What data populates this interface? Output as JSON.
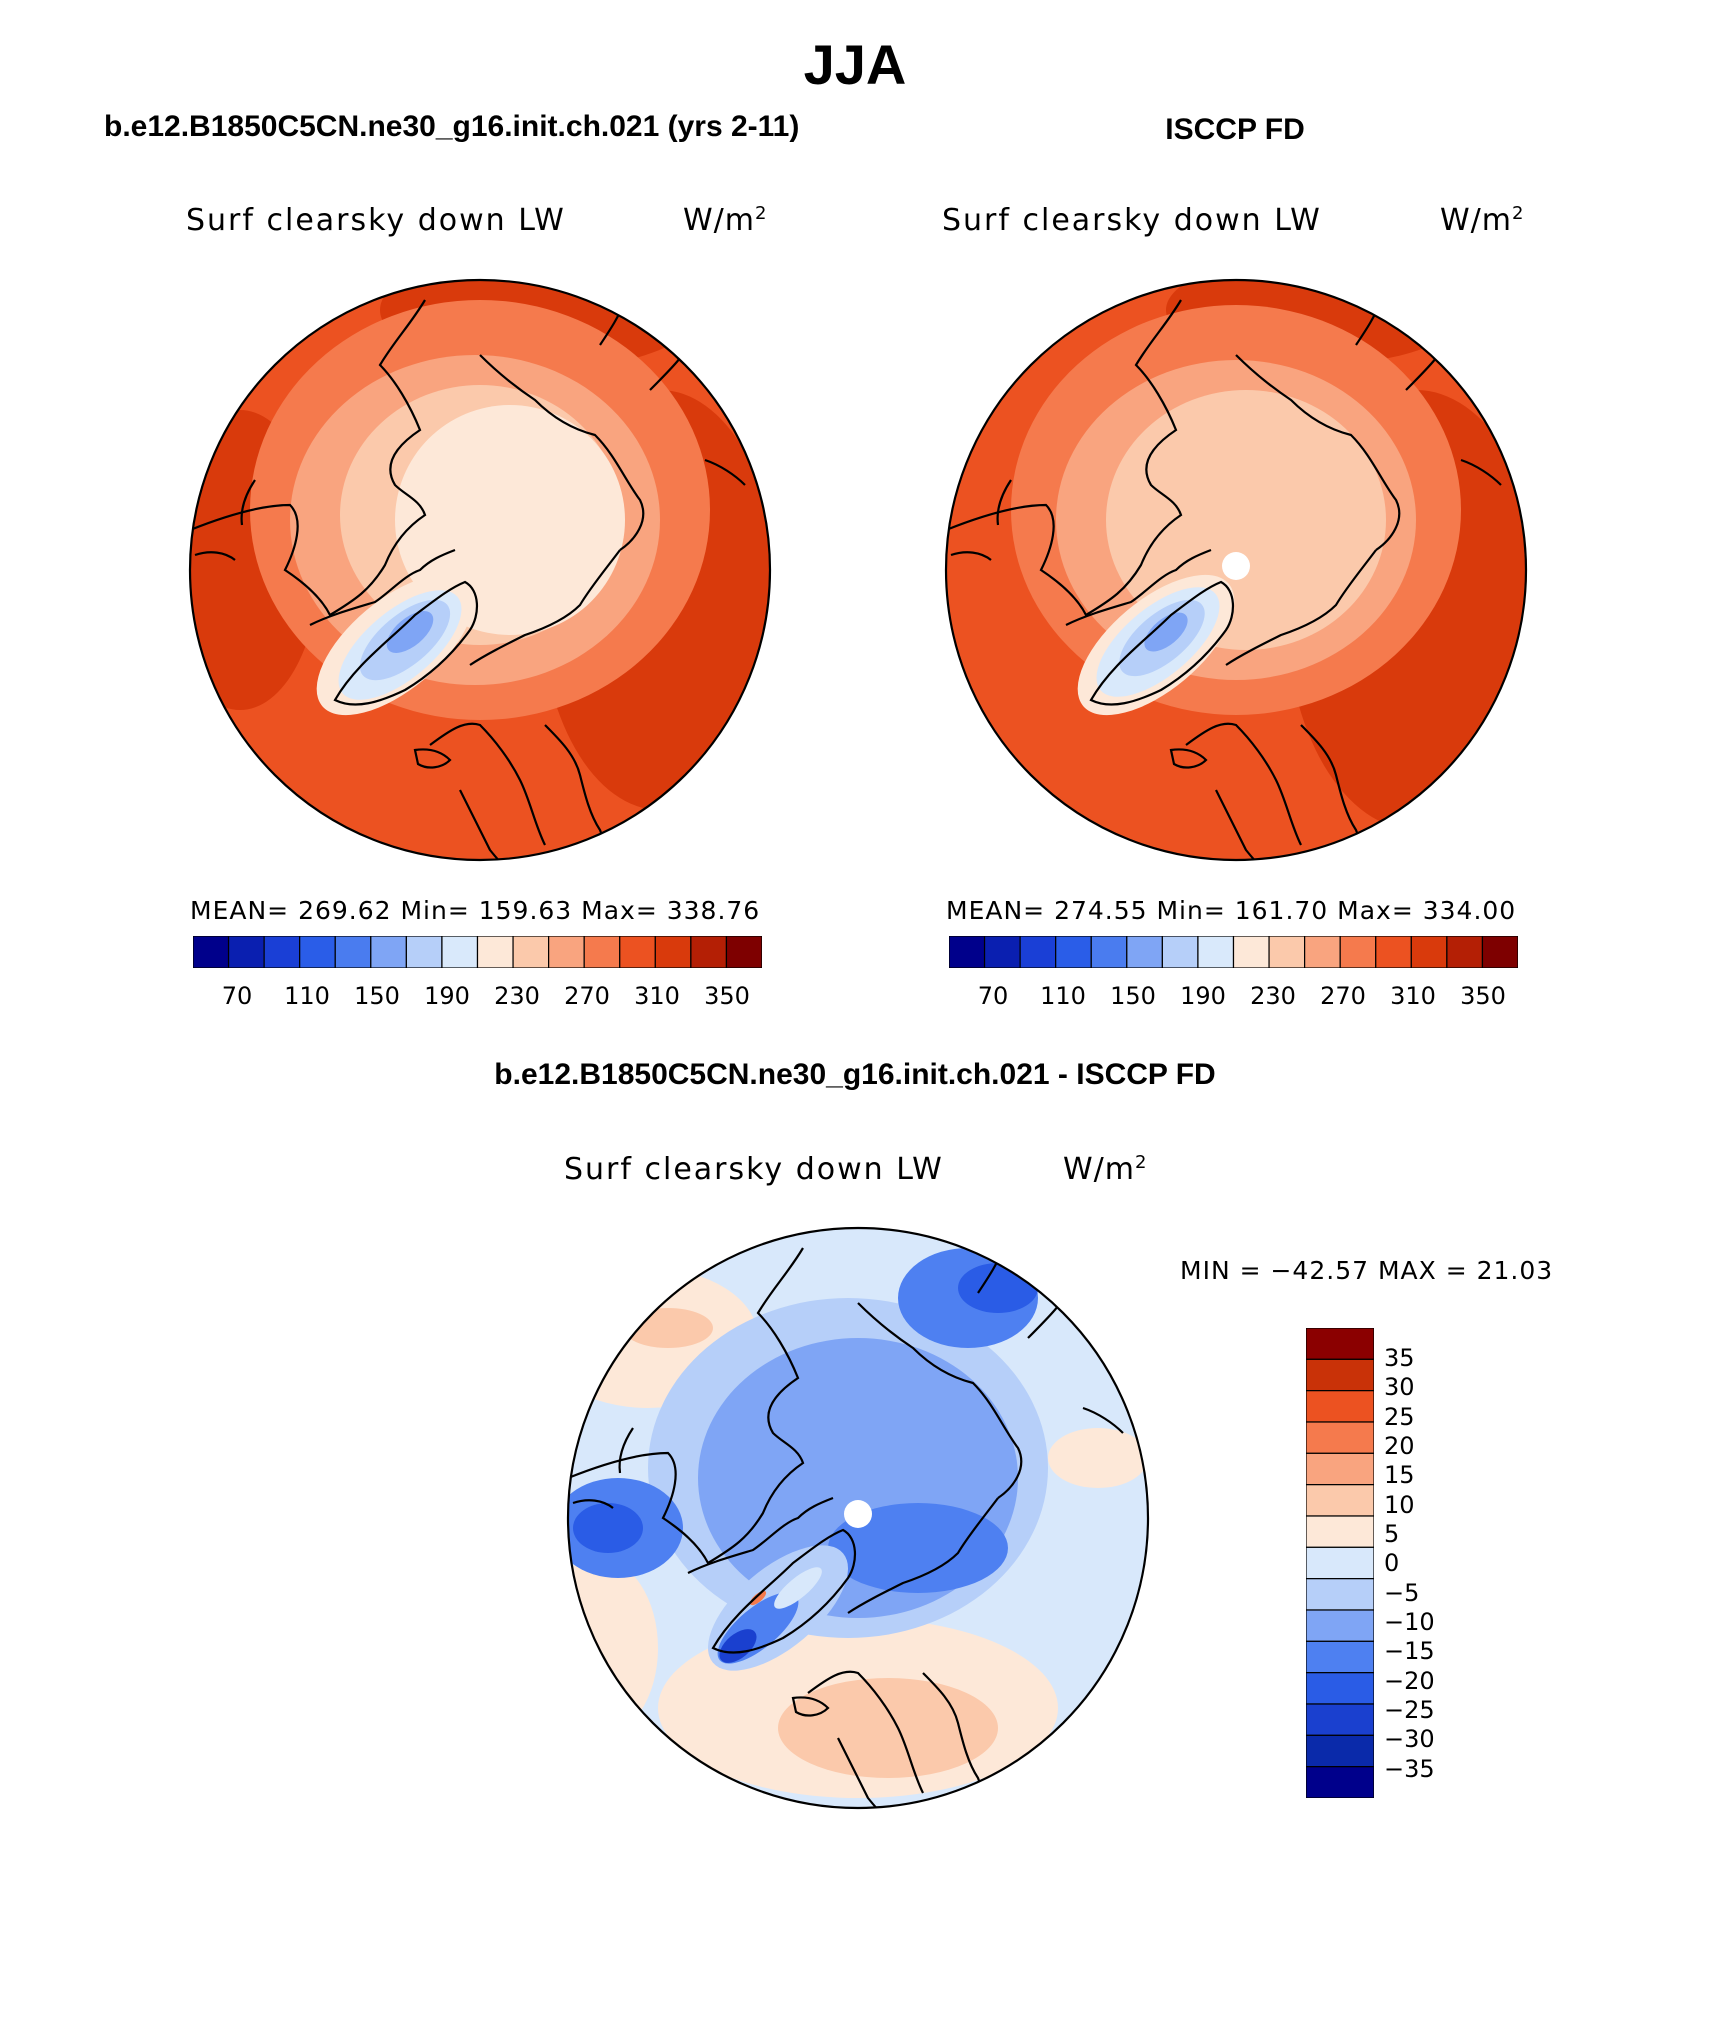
{
  "figure": {
    "title": "JJA",
    "colors": {
      "seq_scale": [
        "#00008b",
        "#0a1fb0",
        "#1a3fd6",
        "#2a5de8",
        "#4a7cef",
        "#7fa5f5",
        "#b6cff9",
        "#d9e9fb",
        "#fde8d8",
        "#fbc9ab",
        "#f9a47f",
        "#f57a4d",
        "#ec5221",
        "#d93a0c",
        "#b41f05",
        "#7e0000"
      ],
      "diff_scale": [
        "#00008b",
        "#0a2aaa",
        "#1a40cf",
        "#2a5ce6",
        "#4e80f1",
        "#7fa5f5",
        "#b6cff9",
        "#d8e8fb",
        "#fde8d8",
        "#fbc9ab",
        "#f9a47f",
        "#f57a4d",
        "#ec5221",
        "#c93208",
        "#8b0000"
      ]
    }
  },
  "panels": [
    {
      "id": "model",
      "title": "b.e12.B1850C5CN.ne30_g16.init.ch.021 (yrs 2-11)",
      "var_name": "Surf clearsky down LW",
      "units": "W/m",
      "units_sup": "2",
      "stats": "MEAN= 269.62   Min= 159.63   Max= 338.76",
      "colorbar_ticks": [
        "70",
        "110",
        "150",
        "190",
        "230",
        "270",
        "310",
        "350"
      ]
    },
    {
      "id": "obs",
      "title": "ISCCP FD",
      "var_name": "Surf clearsky down LW",
      "units": "W/m",
      "units_sup": "2",
      "stats": "MEAN= 274.55   Min= 161.70   Max= 334.00",
      "colorbar_ticks": [
        "70",
        "110",
        "150",
        "190",
        "230",
        "270",
        "310",
        "350"
      ]
    },
    {
      "id": "diff",
      "title": "b.e12.B1850C5CN.ne30_g16.init.ch.021 - ISCCP FD",
      "var_name": "Surf clearsky down LW",
      "units": "W/m",
      "units_sup": "2",
      "stats": "MIN = −42.57 MAX =   21.03",
      "colorbar_ticks": [
        "35",
        "30",
        "25",
        "20",
        "15",
        "10",
        "5",
        "0",
        "−5",
        "−10",
        "−15",
        "−20",
        "−25",
        "−30",
        "−35"
      ]
    }
  ],
  "chart_data": [
    {
      "type": "heatmap",
      "projection": "north polar stereographic",
      "season": "JJA",
      "title": "b.e12.B1850C5CN.ne30_g16.init.ch.021 (yrs 2-11)",
      "variable": "Surf clearsky down LW",
      "units": "W/m2",
      "mean": 269.62,
      "min": 159.63,
      "max": 338.76,
      "contour_levels": [
        70,
        90,
        110,
        130,
        150,
        170,
        190,
        210,
        230,
        250,
        270,
        290,
        310,
        330,
        350
      ],
      "colorbar_labels": [
        70,
        110,
        150,
        190,
        230,
        270,
        310,
        350
      ]
    },
    {
      "type": "heatmap",
      "projection": "north polar stereographic",
      "season": "JJA",
      "title": "ISCCP FD",
      "variable": "Surf clearsky down LW",
      "units": "W/m2",
      "mean": 274.55,
      "min": 161.7,
      "max": 334.0,
      "contour_levels": [
        70,
        90,
        110,
        130,
        150,
        170,
        190,
        210,
        230,
        250,
        270,
        290,
        310,
        330,
        350
      ],
      "colorbar_labels": [
        70,
        110,
        150,
        190,
        230,
        270,
        310,
        350
      ]
    },
    {
      "type": "heatmap",
      "projection": "north polar stereographic",
      "season": "JJA",
      "title": "b.e12.B1850C5CN.ne30_g16.init.ch.021 - ISCCP FD",
      "variable": "Surf clearsky down LW",
      "units": "W/m2",
      "min": -42.57,
      "max": 21.03,
      "contour_levels": [
        -35,
        -30,
        -25,
        -20,
        -15,
        -10,
        -5,
        0,
        5,
        10,
        15,
        20,
        25,
        30,
        35
      ],
      "colorbar_labels": [
        35,
        30,
        25,
        20,
        15,
        10,
        5,
        0,
        -5,
        -10,
        -15,
        -20,
        -25,
        -30,
        -35
      ]
    }
  ]
}
